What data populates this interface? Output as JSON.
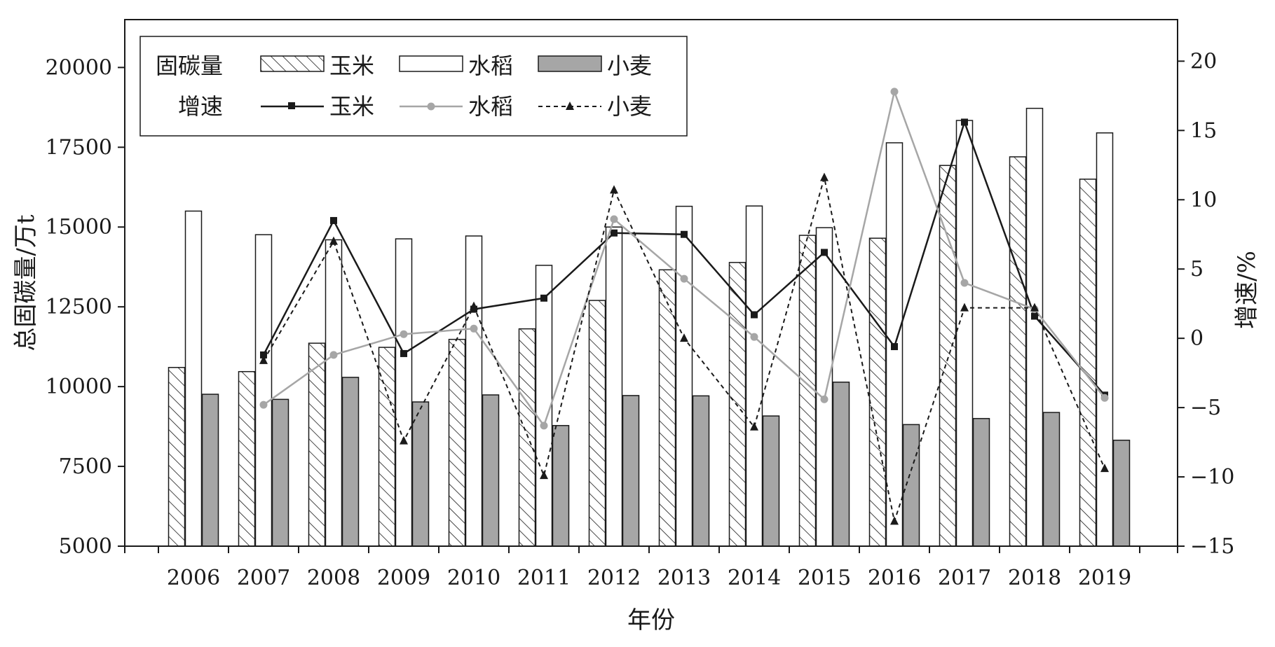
{
  "chart_data": {
    "type": "bar",
    "xlabel": "年份",
    "ylabel_left": "总固碳量/万t",
    "ylabel_right": "增速/%",
    "categories": [
      "2006",
      "2007",
      "2008",
      "2009",
      "2010",
      "2011",
      "2012",
      "2013",
      "2014",
      "2015",
      "2016",
      "2017",
      "2018",
      "2019"
    ],
    "y_left": {
      "range": [
        5000,
        21500
      ],
      "ticks": [
        5000,
        7500,
        10000,
        12500,
        15000,
        17500,
        20000
      ]
    },
    "y_right": {
      "range": [
        -15,
        23
      ],
      "ticks": [
        -15,
        -10,
        -5,
        0,
        5,
        10,
        15,
        20
      ]
    },
    "bar_series": [
      {
        "name": "玉米",
        "color": "#ffffff",
        "pattern": "diagonal-hatch",
        "values": [
          10600,
          10470,
          11360,
          11230,
          11480,
          11810,
          12700,
          13660,
          13890,
          14740,
          14650,
          16930,
          17200,
          16500
        ]
      },
      {
        "name": "水稻",
        "color": "#ffffff",
        "pattern": "none",
        "values": [
          15500,
          14760,
          14600,
          14630,
          14720,
          13800,
          15000,
          15650,
          15660,
          14980,
          17640,
          18340,
          18720,
          17950
        ]
      },
      {
        "name": "小麦",
        "color": "#a6a6a6",
        "pattern": "none",
        "values": [
          9760,
          9600,
          10290,
          9520,
          9740,
          8780,
          9720,
          9710,
          9080,
          10140,
          8810,
          9000,
          9190,
          8320
        ]
      }
    ],
    "line_series": [
      {
        "name": "玉米",
        "axis": "right",
        "color": "#1a1a1a",
        "dash": "solid",
        "marker": "square",
        "x_categories": [
          "2007",
          "2008",
          "2009",
          "2010",
          "2011",
          "2012",
          "2013",
          "2014",
          "2015",
          "2016",
          "2017",
          "2018",
          "2019"
        ],
        "values": [
          -1.2,
          8.5,
          -1.1,
          2.1,
          2.9,
          7.6,
          7.5,
          1.7,
          6.2,
          -0.6,
          15.6,
          1.6,
          -4.1
        ]
      },
      {
        "name": "水稻",
        "axis": "right",
        "color": "#a6a6a6",
        "dash": "solid",
        "marker": "circle",
        "x_categories": [
          "2007",
          "2008",
          "2009",
          "2010",
          "2011",
          "2012",
          "2013",
          "2014",
          "2015",
          "2016",
          "2017",
          "2018",
          "2019"
        ],
        "values": [
          -4.8,
          -1.2,
          0.3,
          0.7,
          -6.3,
          8.6,
          4.3,
          0.1,
          -4.4,
          17.8,
          4.0,
          2.1,
          -4.3
        ]
      },
      {
        "name": "小麦",
        "axis": "right",
        "color": "#1a1a1a",
        "dash": "dashed",
        "marker": "triangle",
        "x_categories": [
          "2007",
          "2008",
          "2009",
          "2010",
          "2011",
          "2012",
          "2013",
          "2014",
          "2015",
          "2016",
          "2017",
          "2018",
          "2019"
        ],
        "values": [
          -1.6,
          7.0,
          -7.4,
          2.3,
          -9.9,
          10.7,
          0.0,
          -6.4,
          11.6,
          -13.2,
          2.2,
          2.2,
          -9.4
        ]
      }
    ],
    "legend": {
      "placement": "top-left",
      "row_bars_label": "固碳量",
      "row_lines_label": "增速",
      "items": [
        "玉米",
        "水稻",
        "小麦"
      ]
    },
    "grid": false
  }
}
